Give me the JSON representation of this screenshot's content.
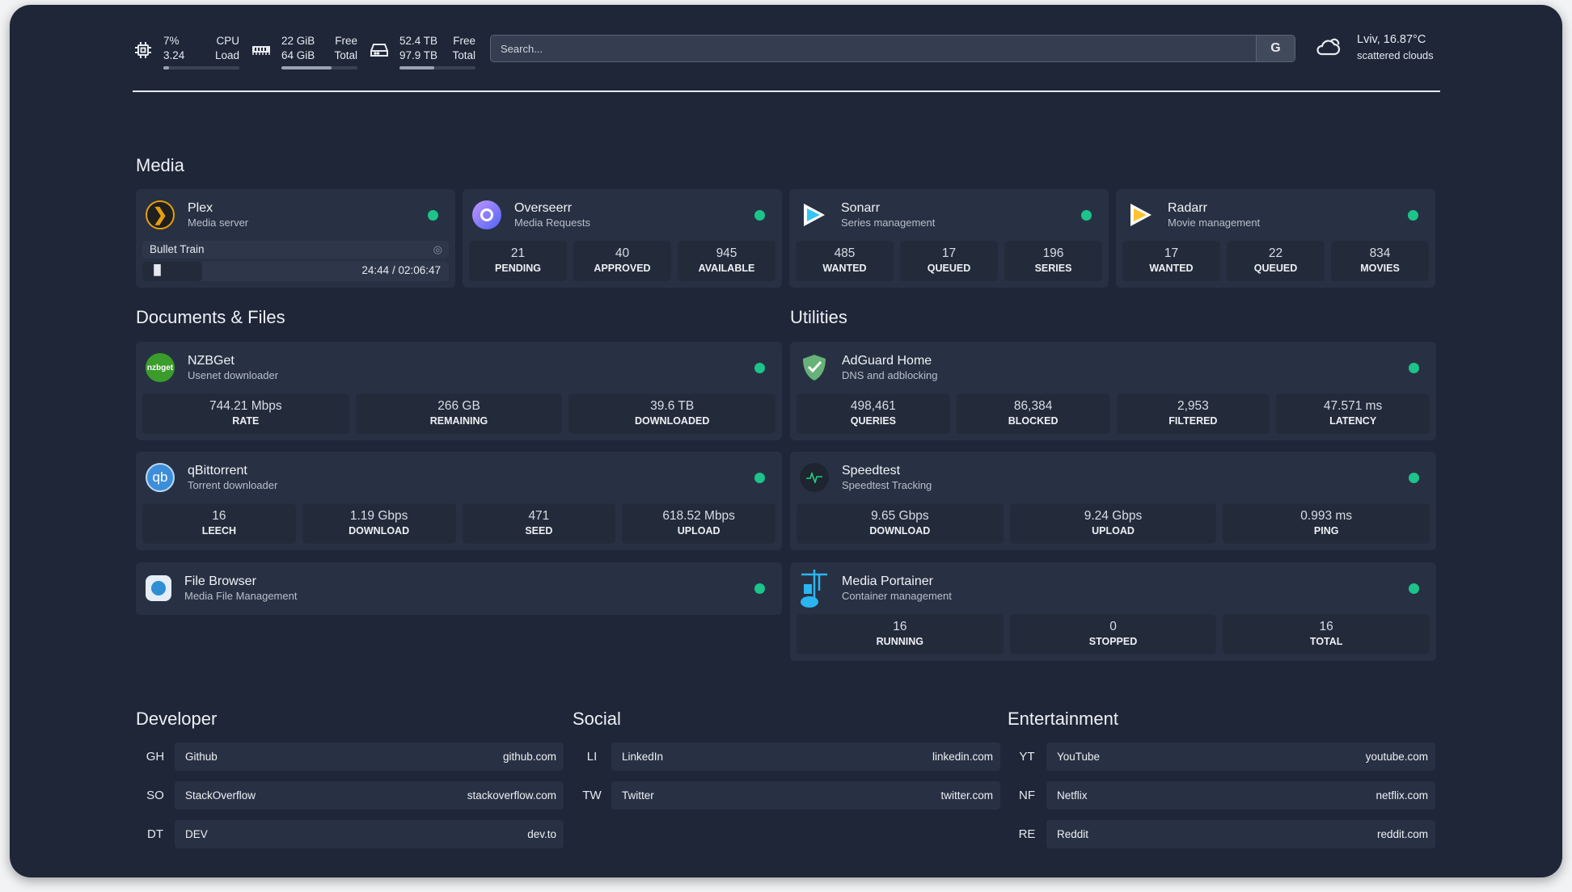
{
  "topbar": {
    "cpu": {
      "icon": "cpu-icon",
      "usage": "7%",
      "load": "3.24",
      "label1": "CPU",
      "label2": "Load",
      "fill_percent": 7
    },
    "memory": {
      "icon": "memory-icon",
      "free": "22 GiB",
      "total": "64 GiB",
      "label1": "Free",
      "label2": "Total",
      "fill_percent": 66
    },
    "disk": {
      "icon": "disk-icon",
      "free": "52.4 TB",
      "total": "97.9 TB",
      "label1": "Free",
      "label2": "Total",
      "fill_percent": 46
    },
    "search": {
      "placeholder": "Search...",
      "button": "G"
    },
    "weather": {
      "icon": "cloud-icon",
      "location_temp": "Lviv, 16.87°C",
      "condition": "scattered clouds"
    }
  },
  "sections": {
    "media": "Media",
    "documents": "Documents & Files",
    "utilities": "Utilities",
    "developer": "Developer",
    "social": "Social",
    "entertainment": "Entertainment"
  },
  "status_color": "#1cc48a",
  "media": [
    {
      "name": "Plex",
      "desc": "Media server",
      "icon": "plex-icon",
      "now_playing": {
        "title": "Bullet Train",
        "time": "24:44 / 02:06:47",
        "progress_percent": 19.5
      }
    },
    {
      "name": "Overseerr",
      "desc": "Media Requests",
      "icon": "overseerr-icon",
      "stats": [
        {
          "v": "21",
          "k": "PENDING"
        },
        {
          "v": "40",
          "k": "APPROVED"
        },
        {
          "v": "945",
          "k": "AVAILABLE"
        }
      ]
    },
    {
      "name": "Sonarr",
      "desc": "Series management",
      "icon": "sonarr-icon",
      "stats": [
        {
          "v": "485",
          "k": "WANTED"
        },
        {
          "v": "17",
          "k": "QUEUED"
        },
        {
          "v": "196",
          "k": "SERIES"
        }
      ]
    },
    {
      "name": "Radarr",
      "desc": "Movie management",
      "icon": "radarr-icon",
      "stats": [
        {
          "v": "17",
          "k": "WANTED"
        },
        {
          "v": "22",
          "k": "QUEUED"
        },
        {
          "v": "834",
          "k": "MOVIES"
        }
      ]
    }
  ],
  "documents": [
    {
      "name": "NZBGet",
      "desc": "Usenet downloader",
      "icon": "nzbget-icon",
      "logo_text": "nzbget",
      "stats": [
        {
          "v": "744.21 Mbps",
          "k": "RATE"
        },
        {
          "v": "266 GB",
          "k": "REMAINING"
        },
        {
          "v": "39.6 TB",
          "k": "DOWNLOADED"
        }
      ]
    },
    {
      "name": "qBittorrent",
      "desc": "Torrent downloader",
      "icon": "qbittorrent-icon",
      "logo_text": "qb",
      "stats": [
        {
          "v": "16",
          "k": "LEECH"
        },
        {
          "v": "1.19 Gbps",
          "k": "DOWNLOAD"
        },
        {
          "v": "471",
          "k": "SEED"
        },
        {
          "v": "618.52 Mbps",
          "k": "UPLOAD"
        }
      ]
    },
    {
      "name": "File Browser",
      "desc": "Media File Management",
      "icon": "file-browser-icon"
    }
  ],
  "utilities": [
    {
      "name": "AdGuard Home",
      "desc": "DNS and adblocking",
      "icon": "adguard-shield-icon",
      "stats": [
        {
          "v": "498,461",
          "k": "QUERIES"
        },
        {
          "v": "86,384",
          "k": "BLOCKED"
        },
        {
          "v": "2,953",
          "k": "FILTERED"
        },
        {
          "v": "47.571 ms",
          "k": "LATENCY"
        }
      ]
    },
    {
      "name": "Speedtest",
      "desc": "Speedtest Tracking",
      "icon": "speedtest-pulse-icon",
      "stats": [
        {
          "v": "9.65 Gbps",
          "k": "DOWNLOAD"
        },
        {
          "v": "9.24 Gbps",
          "k": "UPLOAD"
        },
        {
          "v": "0.993 ms",
          "k": "PING"
        }
      ]
    },
    {
      "name": "Media Portainer",
      "desc": "Container management",
      "icon": "portainer-icon",
      "stats": [
        {
          "v": "16",
          "k": "RUNNING"
        },
        {
          "v": "0",
          "k": "STOPPED"
        },
        {
          "v": "16",
          "k": "TOTAL"
        }
      ]
    }
  ],
  "bookmarks": {
    "developer": [
      {
        "abbr": "GH",
        "name": "Github",
        "url": "github.com"
      },
      {
        "abbr": "SO",
        "name": "StackOverflow",
        "url": "stackoverflow.com"
      },
      {
        "abbr": "DT",
        "name": "DEV",
        "url": "dev.to"
      }
    ],
    "social": [
      {
        "abbr": "LI",
        "name": "LinkedIn",
        "url": "linkedin.com"
      },
      {
        "abbr": "TW",
        "name": "Twitter",
        "url": "twitter.com"
      }
    ],
    "entertainment": [
      {
        "abbr": "YT",
        "name": "YouTube",
        "url": "youtube.com"
      },
      {
        "abbr": "NF",
        "name": "Netflix",
        "url": "netflix.com"
      },
      {
        "abbr": "RE",
        "name": "Reddit",
        "url": "reddit.com"
      }
    ]
  }
}
